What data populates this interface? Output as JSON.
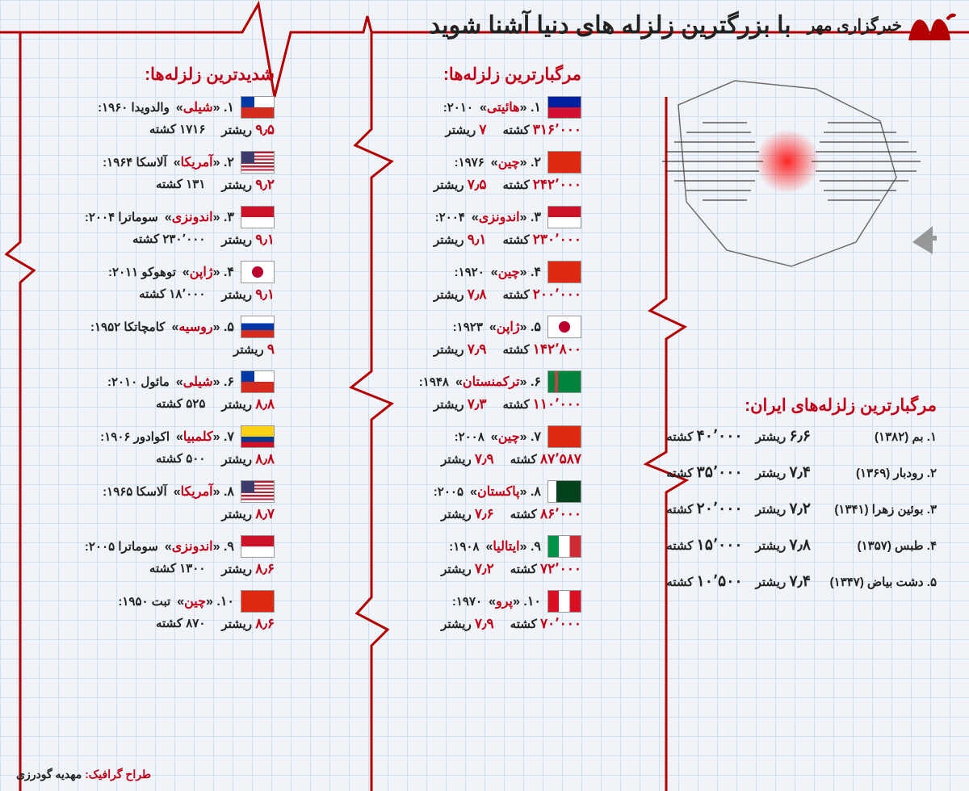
{
  "logo_text": "خبرگزاری مهر",
  "main_title": "با بزرگترین زلزله های دنیا آشنا شوید",
  "sections": {
    "iran": {
      "title": "مرگبارترین زلزله‌های ایران:",
      "items": [
        {
          "rank": "۱",
          "place": "بم",
          "year": "(۱۳۸۲)",
          "mag": "۶٫۶",
          "deaths": "۴۰٬۰۰۰"
        },
        {
          "rank": "۲",
          "place": "رودبار",
          "year": "(۱۳۶۹)",
          "mag": "۷٫۴",
          "deaths": "۳۵٬۰۰۰"
        },
        {
          "rank": "۳",
          "place": "بوئین زهرا",
          "year": "(۱۳۴۱)",
          "mag": "۷٫۲",
          "deaths": "۲۰٬۰۰۰"
        },
        {
          "rank": "۴",
          "place": "طبس",
          "year": "(۱۳۵۷)",
          "mag": "۷٫۸",
          "deaths": "۱۵٬۰۰۰"
        },
        {
          "rank": "۵",
          "place": "دشت بیاض",
          "year": "(۱۳۴۷)",
          "mag": "۷٫۴",
          "deaths": "۱۰٬۵۰۰"
        }
      ]
    },
    "deadliest": {
      "title": "مرگبارترین زلزله‌ها:",
      "items": [
        {
          "rank": "۱",
          "country": "هائیتی",
          "year": "۲۰۱۰",
          "deaths": "۳۱۶٬۰۰۰",
          "mag": "۷",
          "flag": "haiti"
        },
        {
          "rank": "۲",
          "country": "چین",
          "year": "۱۹۷۶",
          "deaths": "۲۴۲٬۰۰۰",
          "mag": "۷٫۵",
          "flag": "china"
        },
        {
          "rank": "۳",
          "country": "اندونزی",
          "year": "۲۰۰۴",
          "deaths": "۲۳۰٬۰۰۰",
          "mag": "۹٫۱",
          "flag": "indonesia"
        },
        {
          "rank": "۴",
          "country": "چین",
          "year": "۱۹۲۰",
          "deaths": "۲۰۰٬۰۰۰",
          "mag": "۷٫۸",
          "flag": "china"
        },
        {
          "rank": "۵",
          "country": "ژاپن",
          "year": "۱۹۲۳",
          "deaths": "۱۴۲٬۸۰۰",
          "mag": "۷٫۹",
          "flag": "japan"
        },
        {
          "rank": "۶",
          "country": "ترکمنستان",
          "year": "۱۹۴۸",
          "deaths": "۱۱۰٬۰۰۰",
          "mag": "۷٫۳",
          "flag": "turkmenistan"
        },
        {
          "rank": "۷",
          "country": "چین",
          "year": "۲۰۰۸",
          "deaths": "۸۷٬۵۸۷",
          "mag": "۷٫۹",
          "flag": "china"
        },
        {
          "rank": "۸",
          "country": "پاکستان",
          "year": "۲۰۰۵",
          "deaths": "۸۶٬۰۰۰",
          "mag": "۷٫۶",
          "flag": "pakistan"
        },
        {
          "rank": "۹",
          "country": "ایتالیا",
          "year": "۱۹۰۸",
          "deaths": "۷۲٬۰۰۰",
          "mag": "۷٫۲",
          "flag": "italy"
        },
        {
          "rank": "۱۰",
          "country": "پرو",
          "year": "۱۹۷۰",
          "deaths": "۷۰٬۰۰۰",
          "mag": "۷٫۹",
          "flag": "peru"
        }
      ]
    },
    "strongest": {
      "title": "شدیدترین زلزله‌ها:",
      "items": [
        {
          "rank": "۱",
          "country": "شیلی",
          "loc": "والدویدا",
          "year": "۱۹۶۰",
          "mag": "۹٫۵",
          "deaths": "۱۷۱۶",
          "flag": "chile"
        },
        {
          "rank": "۲",
          "country": "آمریکا",
          "loc": "آلاسکا",
          "year": "۱۹۶۴",
          "mag": "۹٫۲",
          "deaths": "۱۳۱",
          "flag": "usa"
        },
        {
          "rank": "۳",
          "country": "اندونزی",
          "loc": "سوماترا",
          "year": "۲۰۰۴",
          "mag": "۹٫۱",
          "deaths": "۲۳۰٬۰۰۰",
          "flag": "indonesia"
        },
        {
          "rank": "۴",
          "country": "ژاپن",
          "loc": "توهوکو",
          "year": "۲۰۱۱",
          "mag": "۹٫۱",
          "deaths": "۱۸٬۰۰۰",
          "flag": "japan"
        },
        {
          "rank": "۵",
          "country": "روسیه",
          "loc": "کامچاتکا",
          "year": "۱۹۵۲",
          "mag": "۹",
          "deaths": "",
          "flag": "russia"
        },
        {
          "rank": "۶",
          "country": "شیلی",
          "loc": "مائول",
          "year": "۲۰۱۰",
          "mag": "۸٫۸",
          "deaths": "۵۲۵",
          "flag": "chile"
        },
        {
          "rank": "۷",
          "country": "کلمبیا",
          "loc": "اکوادور",
          "year": "۱۹۰۶",
          "mag": "۸٫۸",
          "deaths": "۵۰۰",
          "flag": "colombia"
        },
        {
          "rank": "۸",
          "country": "آمریکا",
          "loc": "آلاسکا",
          "year": "۱۹۶۵",
          "mag": "۸٫۷",
          "deaths": "",
          "flag": "usa"
        },
        {
          "rank": "۹",
          "country": "اندونزی",
          "loc": "سوماترا",
          "year": "۲۰۰۵",
          "mag": "۸٫۶",
          "deaths": "۱۳۰۰",
          "flag": "indonesia"
        },
        {
          "rank": "۱۰",
          "country": "چین",
          "loc": "تبت",
          "year": "۱۹۵۰",
          "mag": "۸٫۶",
          "deaths": "۸۷۰",
          "flag": "china"
        }
      ]
    }
  },
  "labels": {
    "richter": "ریشتر",
    "killed": "کشته"
  },
  "credit_label": "طراح گرافیک:",
  "credit_name": "مهدیه گودرزی",
  "colors": {
    "accent": "#c20016",
    "text": "#222",
    "grid": "#d0e0ee",
    "bg": "#f0f4f8"
  }
}
